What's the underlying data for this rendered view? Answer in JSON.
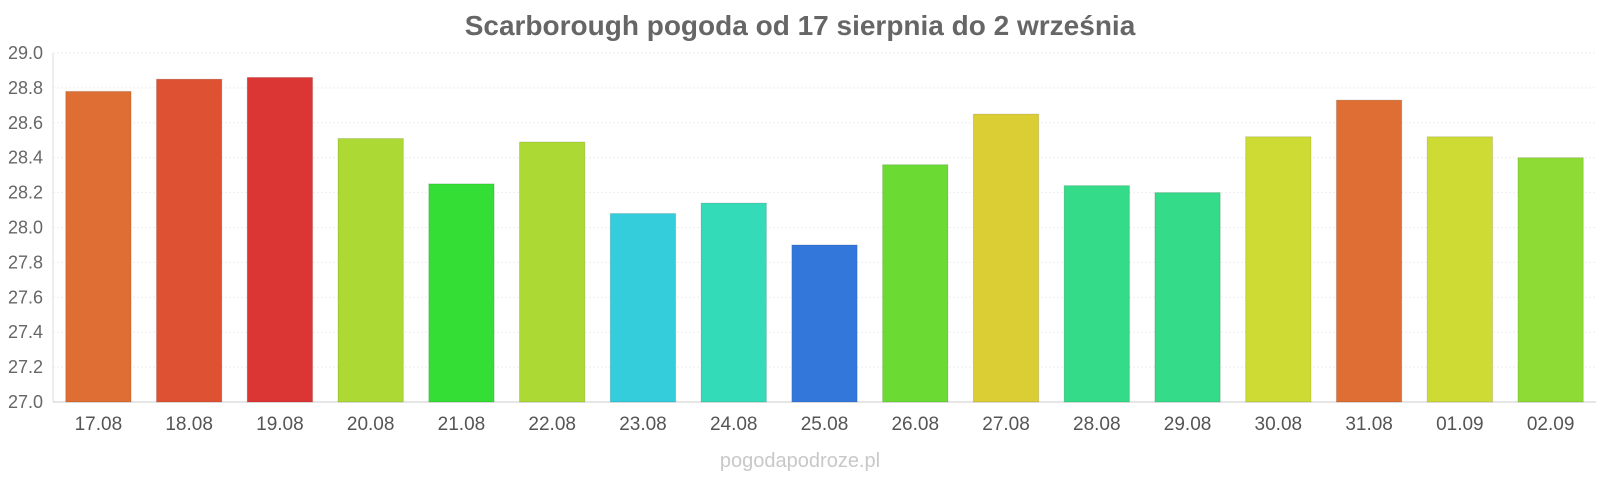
{
  "chart_data": {
    "type": "bar",
    "title": "Scarborough pogoda od 17 sierpnia do 2 września",
    "xlabel": "",
    "ylabel": "",
    "categories": [
      "17.08",
      "18.08",
      "19.08",
      "20.08",
      "21.08",
      "22.08",
      "23.08",
      "24.08",
      "25.08",
      "26.08",
      "27.08",
      "28.08",
      "29.08",
      "30.08",
      "31.08",
      "01.09",
      "02.09"
    ],
    "values": [
      28.78,
      28.85,
      28.86,
      28.51,
      28.25,
      28.49,
      28.08,
      28.14,
      27.9,
      28.36,
      28.65,
      28.24,
      28.2,
      28.52,
      28.73,
      28.52,
      28.4
    ],
    "colors": [
      "#de6e33",
      "#de5233",
      "#db3634",
      "#add934",
      "#34de34",
      "#add934",
      "#34cddb",
      "#34dbb8",
      "#3377db",
      "#6bdb34",
      "#dbcd34",
      "#34db88",
      "#34db88",
      "#cddb34",
      "#de6e33",
      "#cddb34",
      "#8ddb34"
    ],
    "ylim": [
      27.0,
      29.0
    ],
    "yticks": [
      "27.0",
      "27.2",
      "27.4",
      "27.6",
      "27.8",
      "28.0",
      "28.2",
      "28.4",
      "28.6",
      "28.8",
      "29.0"
    ],
    "grid": true
  },
  "watermark": "pogodapodroze.pl"
}
